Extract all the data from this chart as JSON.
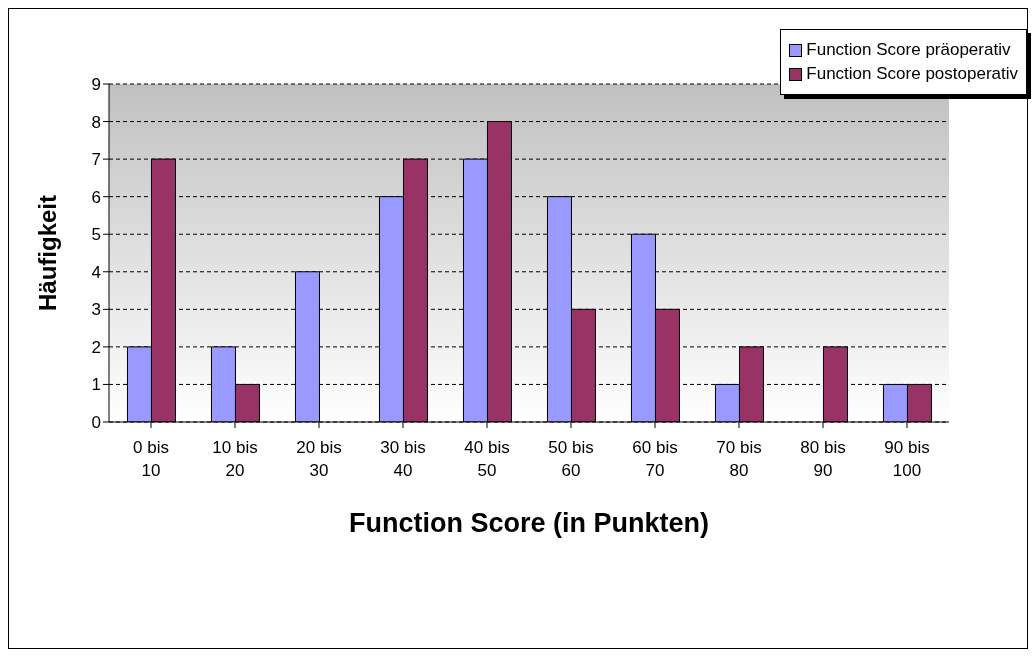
{
  "chart_data": {
    "type": "bar",
    "xlabel": "Function Score (in Punkten)",
    "ylabel": "Häufigkeit",
    "categories": [
      "0 bis 10",
      "10 bis 20",
      "20 bis 30",
      "30 bis 40",
      "40 bis 50",
      "50 bis 60",
      "60 bis 70",
      "70 bis 80",
      "80 bis 90",
      "90 bis 100"
    ],
    "series": [
      {
        "name": "Function Score präoperativ",
        "color": "#9999ff",
        "values": [
          2,
          2,
          4,
          6,
          7,
          6,
          5,
          1,
          0,
          1
        ]
      },
      {
        "name": "Function Score postoperativ",
        "color": "#993366",
        "values": [
          7,
          1,
          0,
          7,
          8,
          3,
          3,
          2,
          2,
          1
        ]
      }
    ],
    "ylim": [
      0,
      9
    ],
    "yticks": [
      0,
      1,
      2,
      3,
      4,
      5,
      6,
      7,
      8,
      9
    ],
    "grid": "y",
    "legend": "top right"
  }
}
